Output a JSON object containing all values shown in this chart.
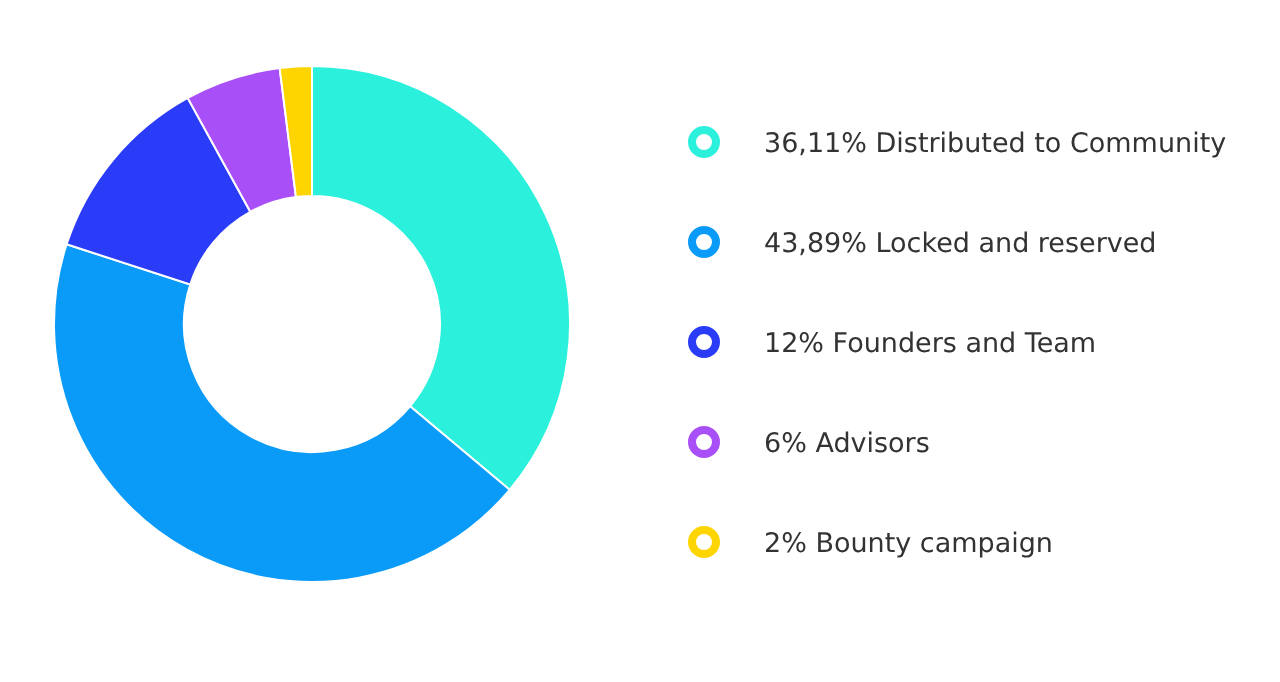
{
  "chart_data": {
    "type": "donut",
    "categories": [
      "Distributed to Community",
      "Locked and reserved",
      "Founders and Team",
      "Advisors",
      "Bounty campaign"
    ],
    "values": [
      36.11,
      43.89,
      12,
      6,
      2
    ],
    "value_labels": [
      "36,11%",
      "43,89%",
      "12%",
      "6%",
      "2%"
    ],
    "colors": [
      "#2af0dc",
      "#0a9af7",
      "#2a3cf7",
      "#a84ff7",
      "#ffd500"
    ],
    "legend": "right"
  }
}
